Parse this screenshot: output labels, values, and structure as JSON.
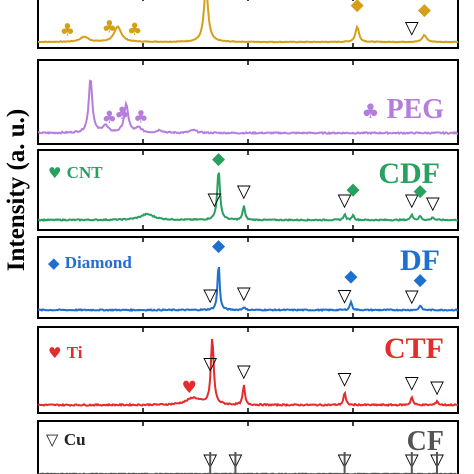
{
  "chart_data": {
    "type": "line",
    "y_axis_label": "Intensity (a. u.)",
    "colors": {
      "top": "#d4a017",
      "PEG": "#b57edc",
      "CDF": "#27a060",
      "DF": "#1f6fd1",
      "CTF": "#e52b2b",
      "CF": "#555555",
      "axis": "#000000"
    },
    "symbols": {
      "club": "♣",
      "heart": "♥",
      "diamond": "◆",
      "triangle": "▽"
    },
    "panels": [
      {
        "key": "top",
        "sample_label": "",
        "legend_text": "",
        "peaks": [
          {
            "x": 0.11,
            "y": 0.15,
            "w": 0.012
          },
          {
            "x": 0.19,
            "y": 0.45,
            "w": 0.01
          },
          {
            "x": 0.4,
            "y": 1.6,
            "w": 0.006
          },
          {
            "x": 0.76,
            "y": 0.45,
            "w": 0.005
          },
          {
            "x": 0.92,
            "y": 0.2,
            "w": 0.006
          }
        ],
        "markers": [
          {
            "s": "club",
            "x": 0.07
          },
          {
            "s": "club",
            "x": 0.17
          },
          {
            "s": "club",
            "x": 0.23
          },
          {
            "s": "diamond",
            "x": 0.76
          },
          {
            "s": "triangle",
            "x": 0.89
          },
          {
            "s": "diamond",
            "x": 0.92
          }
        ]
      },
      {
        "key": "PEG",
        "sample_label": "PEG",
        "legend_text": "",
        "peaks": [
          {
            "x": 0.125,
            "y": 0.78,
            "w": 0.005
          },
          {
            "x": 0.16,
            "y": 0.1,
            "w": 0.008
          },
          {
            "x": 0.21,
            "y": 0.4,
            "w": 0.006
          },
          {
            "x": 0.24,
            "y": 0.07,
            "w": 0.008
          },
          {
            "x": 0.29,
            "y": 0.04,
            "w": 0.008
          },
          {
            "x": 0.37,
            "y": 0.04,
            "w": 0.01
          }
        ],
        "markers": [
          {
            "s": "club",
            "x": 0.17
          },
          {
            "s": "club",
            "x": 0.2
          },
          {
            "s": "club",
            "x": 0.245
          }
        ]
      },
      {
        "key": "CDF",
        "sample_label": "CDF",
        "legend_text": "CNT",
        "legend_symbol": "heart",
        "peaks": [
          {
            "x": 0.26,
            "y": 0.1,
            "w": 0.02
          },
          {
            "x": 0.43,
            "y": 0.85,
            "w": 0.004
          },
          {
            "x": 0.49,
            "y": 0.25,
            "w": 0.003
          },
          {
            "x": 0.73,
            "y": 0.1,
            "w": 0.003
          },
          {
            "x": 0.75,
            "y": 0.09,
            "w": 0.003
          },
          {
            "x": 0.89,
            "y": 0.1,
            "w": 0.003
          },
          {
            "x": 0.91,
            "y": 0.07,
            "w": 0.003
          },
          {
            "x": 0.94,
            "y": 0.05,
            "w": 0.003
          }
        ],
        "markers": [
          {
            "s": "diamond",
            "x": 0.43
          },
          {
            "s": "triangle",
            "x": 0.42
          },
          {
            "s": "triangle",
            "x": 0.49
          },
          {
            "s": "triangle",
            "x": 0.73
          },
          {
            "s": "diamond",
            "x": 0.75
          },
          {
            "s": "triangle",
            "x": 0.89
          },
          {
            "s": "diamond",
            "x": 0.91
          },
          {
            "s": "triangle",
            "x": 0.94
          }
        ]
      },
      {
        "key": "DF",
        "sample_label": "DF",
        "legend_text": "Diamond",
        "legend_symbol": "diamond",
        "peaks": [
          {
            "x": 0.43,
            "y": 0.78,
            "w": 0.003
          },
          {
            "x": 0.49,
            "y": 0.05,
            "w": 0.003
          },
          {
            "x": 0.745,
            "y": 0.14,
            "w": 0.003
          },
          {
            "x": 0.91,
            "y": 0.08,
            "w": 0.003
          }
        ],
        "markers": [
          {
            "s": "diamond",
            "x": 0.43
          },
          {
            "s": "triangle",
            "x": 0.41
          },
          {
            "s": "triangle",
            "x": 0.49
          },
          {
            "s": "triangle",
            "x": 0.73
          },
          {
            "s": "diamond",
            "x": 0.745
          },
          {
            "s": "triangle",
            "x": 0.89
          },
          {
            "s": "diamond",
            "x": 0.91
          }
        ]
      },
      {
        "key": "CTF",
        "sample_label": "CTF",
        "legend_text": "Ti",
        "legend_symbol": "heart",
        "peaks": [
          {
            "x": 0.37,
            "y": 0.1,
            "w": 0.02
          },
          {
            "x": 0.415,
            "y": 0.95,
            "w": 0.004
          },
          {
            "x": 0.49,
            "y": 0.28,
            "w": 0.003
          },
          {
            "x": 0.73,
            "y": 0.18,
            "w": 0.003
          },
          {
            "x": 0.89,
            "y": 0.12,
            "w": 0.003
          },
          {
            "x": 0.95,
            "y": 0.06,
            "w": 0.003
          }
        ],
        "markers": [
          {
            "s": "heart",
            "x": 0.36
          },
          {
            "s": "triangle",
            "x": 0.41
          },
          {
            "s": "triangle",
            "x": 0.49
          },
          {
            "s": "triangle",
            "x": 0.73
          },
          {
            "s": "triangle",
            "x": 0.89
          },
          {
            "s": "triangle",
            "x": 0.95
          }
        ]
      },
      {
        "key": "CF",
        "sample_label": "CF",
        "legend_text": "Cu",
        "legend_symbol": "triangle",
        "peaks": [],
        "markers": [
          {
            "s": "triangle",
            "x": 0.41
          },
          {
            "s": "triangle",
            "x": 0.47
          },
          {
            "s": "triangle",
            "x": 0.73
          },
          {
            "s": "triangle",
            "x": 0.89
          },
          {
            "s": "triangle",
            "x": 0.95
          }
        ]
      }
    ]
  }
}
